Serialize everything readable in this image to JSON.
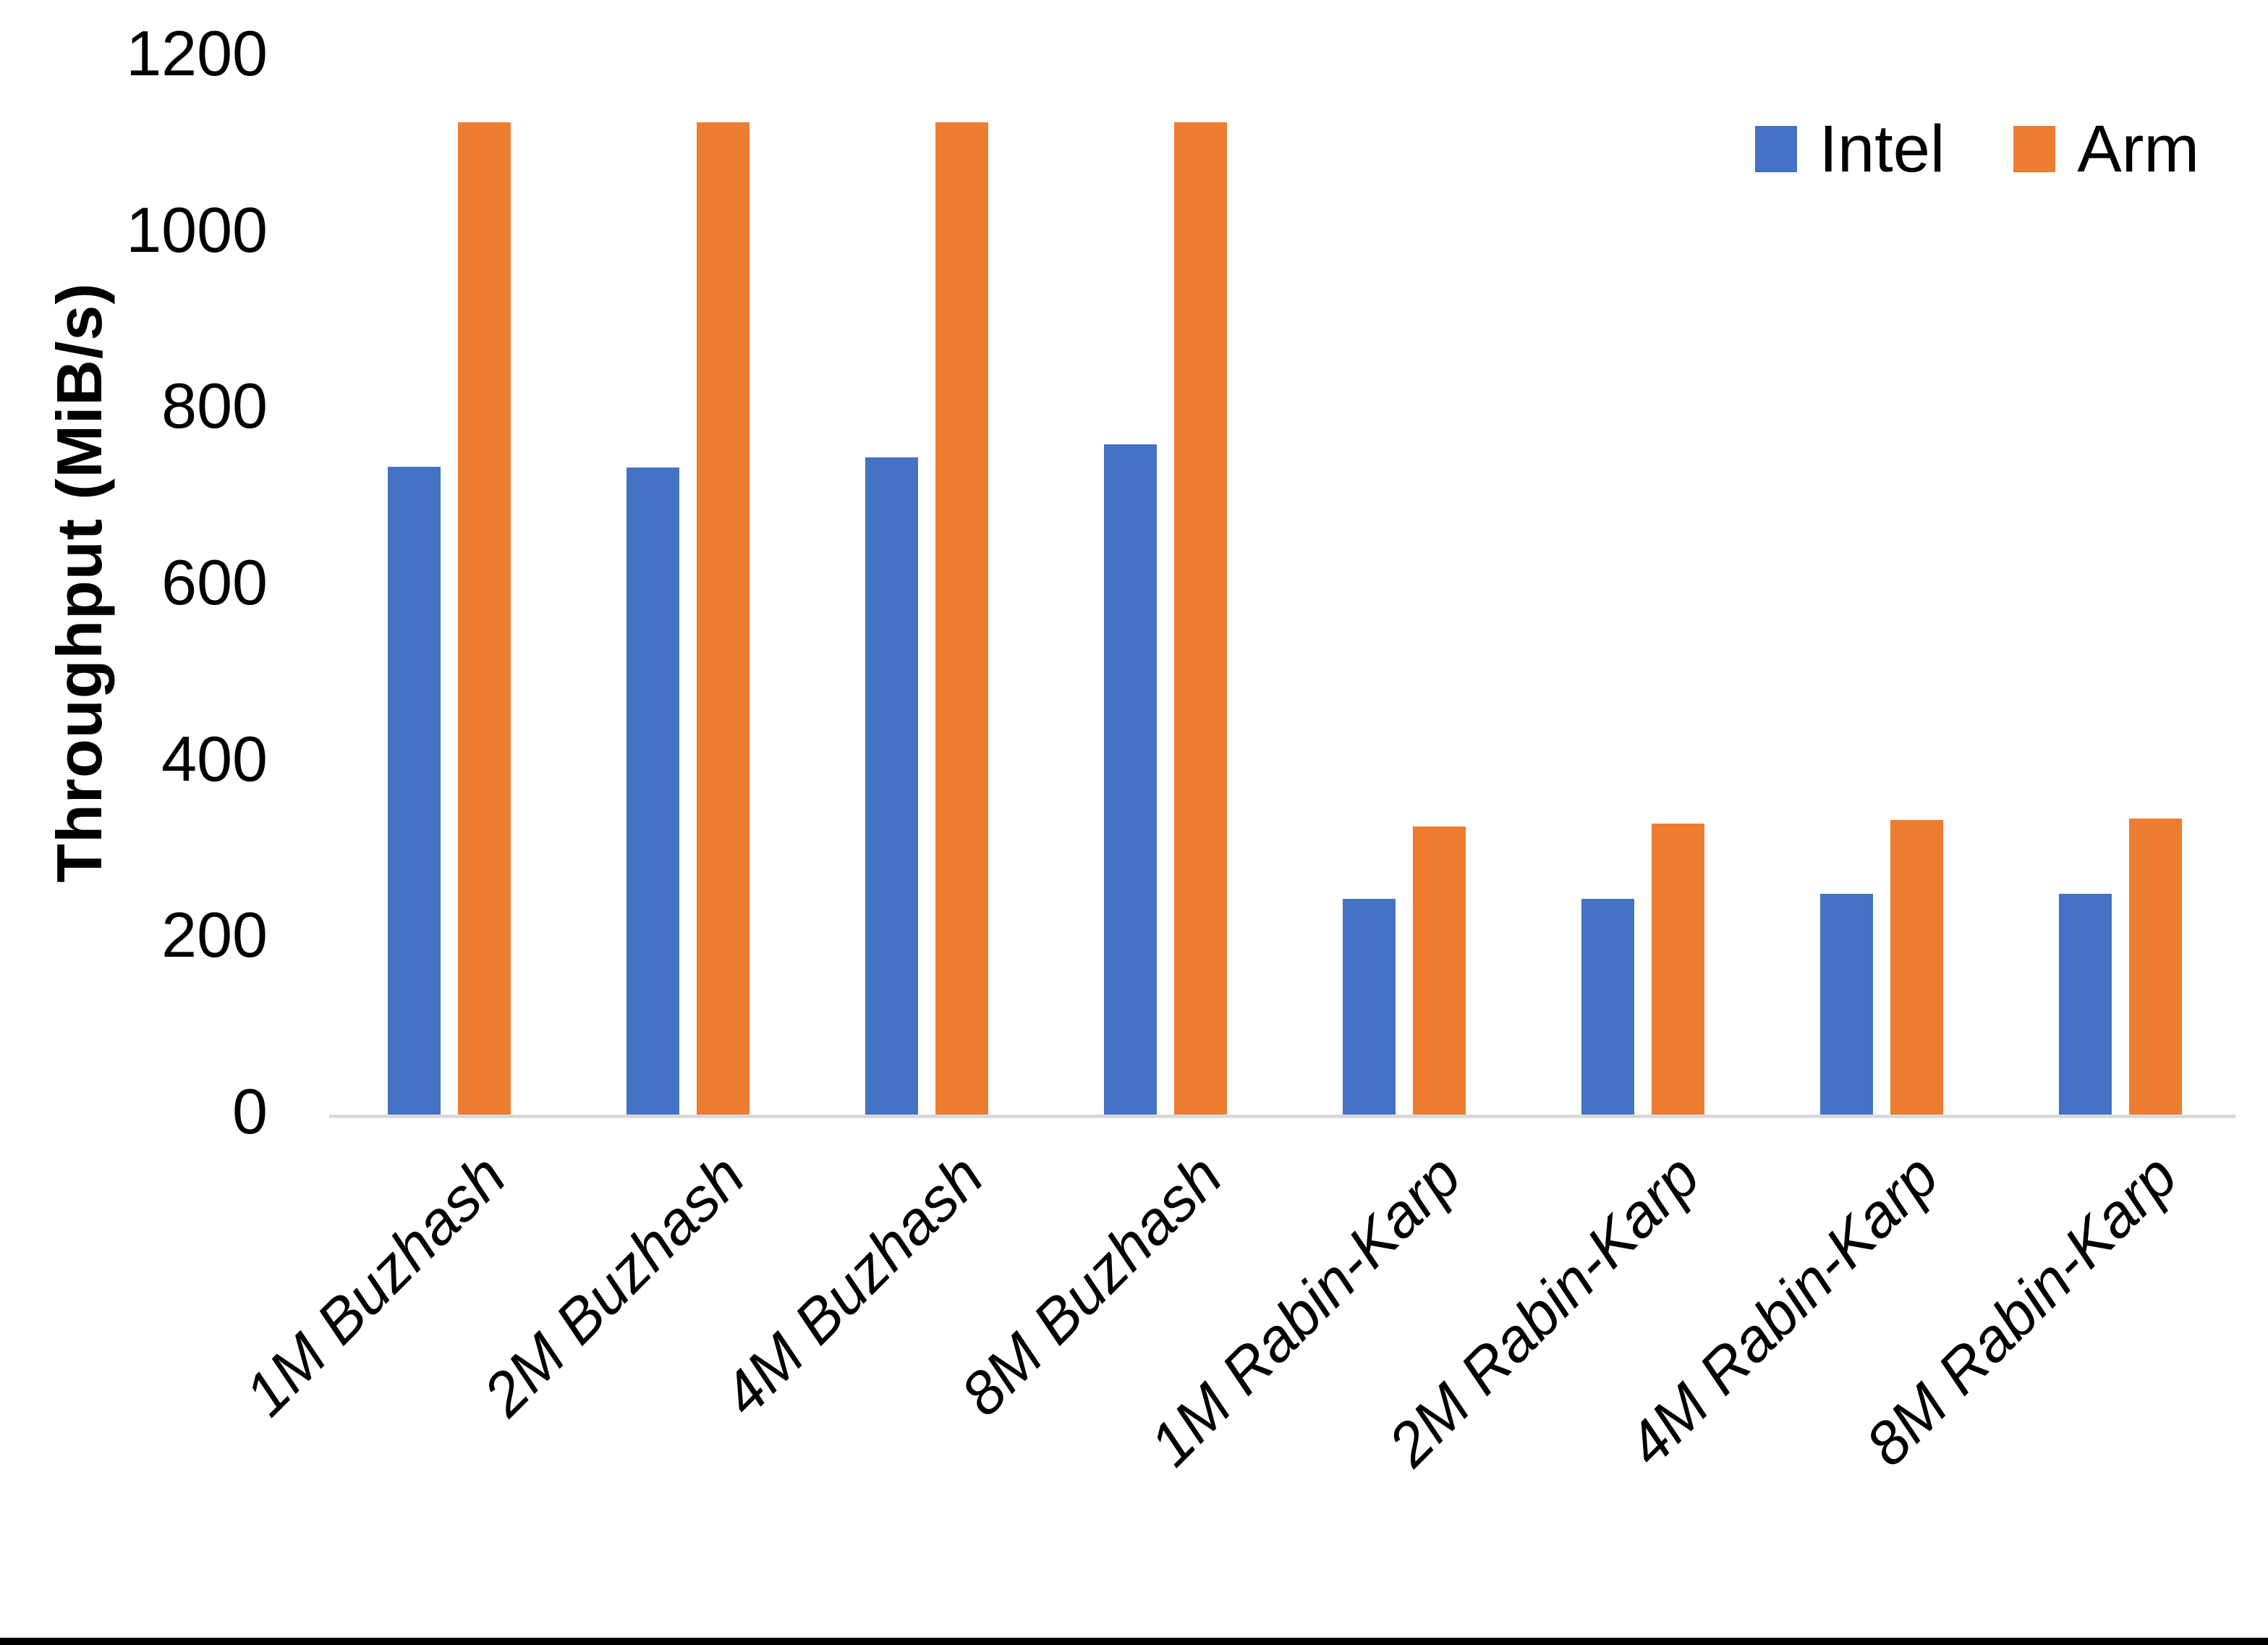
{
  "figure": {
    "background": "#ffffff",
    "bottom_bar_color": "#000000",
    "axis_line_color": "#D9D9D9"
  },
  "legend": {
    "items": [
      {
        "label": "Intel",
        "color": "#4472C4"
      },
      {
        "label": "Arm",
        "color": "#ED7D31"
      }
    ]
  },
  "chart_data": {
    "type": "bar",
    "title": "",
    "xlabel": "",
    "ylabel": "Throughput (MiB/s)",
    "ylim": [
      0,
      1200
    ],
    "yticks": [
      0,
      200,
      400,
      600,
      800,
      1000,
      1200
    ],
    "grid": false,
    "legend_position": "top-right",
    "categories": [
      "1M Buzhash",
      "2M Buzhash",
      "4M Buzhash",
      "8M Buzhash",
      "1M Rabin-Karp",
      "2M Rabin-Karp",
      "4M Rabin-Karp",
      "8M Rabin-Karp"
    ],
    "series": [
      {
        "name": "Intel",
        "color": "#4472C4",
        "values": [
          735,
          734,
          745,
          760,
          245,
          245,
          250,
          250
        ]
      },
      {
        "name": "Arm",
        "color": "#ED7D31",
        "values": [
          1125,
          1125,
          1125,
          1125,
          327,
          330,
          334,
          336
        ]
      }
    ]
  }
}
